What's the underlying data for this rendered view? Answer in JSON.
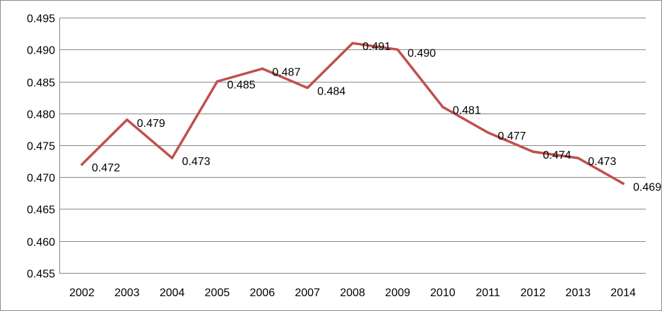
{
  "chart_data": {
    "type": "line",
    "title": "",
    "xlabel": "",
    "ylabel": "",
    "categories": [
      "2002",
      "2003",
      "2004",
      "2005",
      "2006",
      "2007",
      "2008",
      "2009",
      "2010",
      "2011",
      "2012",
      "2013",
      "2014"
    ],
    "series": [
      {
        "values": [
          0.472,
          0.479,
          0.473,
          0.485,
          0.487,
          0.484,
          0.491,
          0.49,
          0.481,
          0.477,
          0.474,
          0.473,
          0.469
        ],
        "labels": [
          "0.472",
          "0.479",
          "0.473",
          "0.485",
          "0.487",
          "0.484",
          "0.491",
          "0.490",
          "0.481",
          "0.477",
          "0.474",
          "0.473",
          "0.469"
        ],
        "color": "#c0504d"
      }
    ],
    "ylim": [
      0.455,
      0.495
    ],
    "yticks": [
      "0.455",
      "0.460",
      "0.465",
      "0.470",
      "0.475",
      "0.480",
      "0.485",
      "0.490",
      "0.495"
    ],
    "ytick_values": [
      0.455,
      0.46,
      0.465,
      0.47,
      0.475,
      0.48,
      0.485,
      0.49,
      0.495
    ],
    "grid": true,
    "legend": "none",
    "colors": {
      "line": "#c0504d",
      "grid": "#888888",
      "axis": "#888888"
    }
  }
}
